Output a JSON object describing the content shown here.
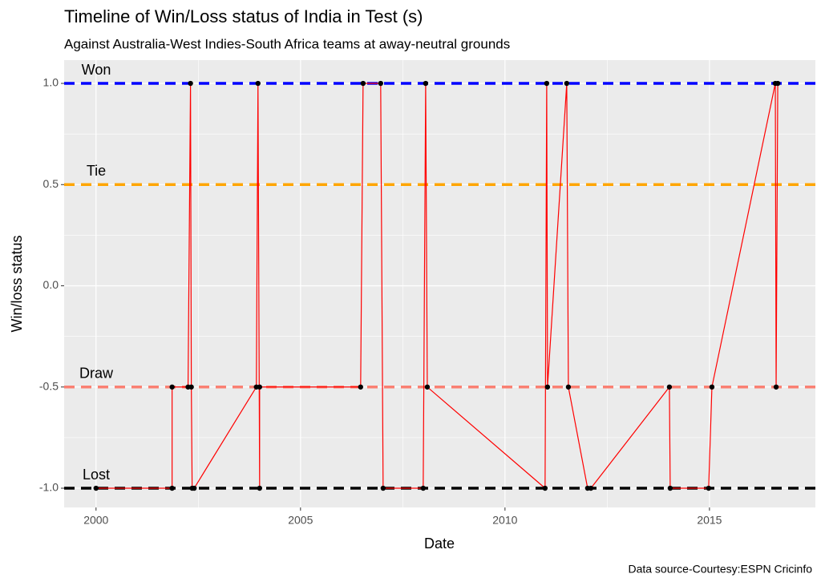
{
  "chart_data": {
    "type": "line",
    "title": "Timeline of Win/Loss status of India in Test (s)",
    "subtitle": "Against Australia-West Indies-South Africa  teams at away-neutral grounds",
    "x_label": "Date",
    "y_label": "Win/loss status",
    "caption": "Data source-Courtesy:ESPN Cricinfo",
    "x": [
      2000.0,
      2001.86,
      2001.86,
      2002.25,
      2002.31,
      2002.33,
      2002.35,
      2002.4,
      2003.92,
      2003.96,
      2004.0,
      2004.0,
      2006.47,
      2006.53,
      2006.96,
      2007.02,
      2008.0,
      2008.06,
      2008.1,
      2010.98,
      2011.02,
      2011.04,
      2011.51,
      2011.55,
      2012.02,
      2012.1,
      2014.02,
      2014.04,
      2014.98,
      2015.06,
      2016.61,
      2016.63,
      2016.67
    ],
    "series": [
      {
        "name": "Win/loss status",
        "color": "#ff0000",
        "point_color": "#000000",
        "values": [
          -1,
          -1,
          -0.5,
          -0.5,
          1,
          -0.5,
          -1,
          -1,
          -0.5,
          1,
          -1,
          -0.5,
          -0.5,
          1,
          1,
          -1,
          -1,
          1,
          -0.5,
          -1,
          1,
          -0.5,
          1,
          -0.5,
          -1,
          -1,
          -0.5,
          -1,
          -1,
          -0.5,
          1,
          -0.5,
          1
        ]
      }
    ],
    "reference_lines": [
      {
        "label": "Won",
        "value": 1,
        "color": "#0000ff"
      },
      {
        "label": "Tie",
        "value": 0.5,
        "color": "#ffa500"
      },
      {
        "label": "Draw",
        "value": -0.5,
        "color": "#fa8072"
      },
      {
        "label": "Lost",
        "value": -1,
        "color": "#000000"
      }
    ],
    "xlim": [
      1999.22,
      2017.59
    ],
    "xticks": [
      2000,
      2005,
      2010,
      2015
    ],
    "ylim": [
      -1.095,
      1.115
    ],
    "yticks": [
      {
        "value": -1,
        "label": "-1.0"
      },
      {
        "value": -0.5,
        "label": "-0.5"
      },
      {
        "value": 0,
        "label": "0.0"
      },
      {
        "value": 0.5,
        "label": "0.5"
      },
      {
        "value": 1,
        "label": "1.0"
      }
    ],
    "grid": true
  }
}
